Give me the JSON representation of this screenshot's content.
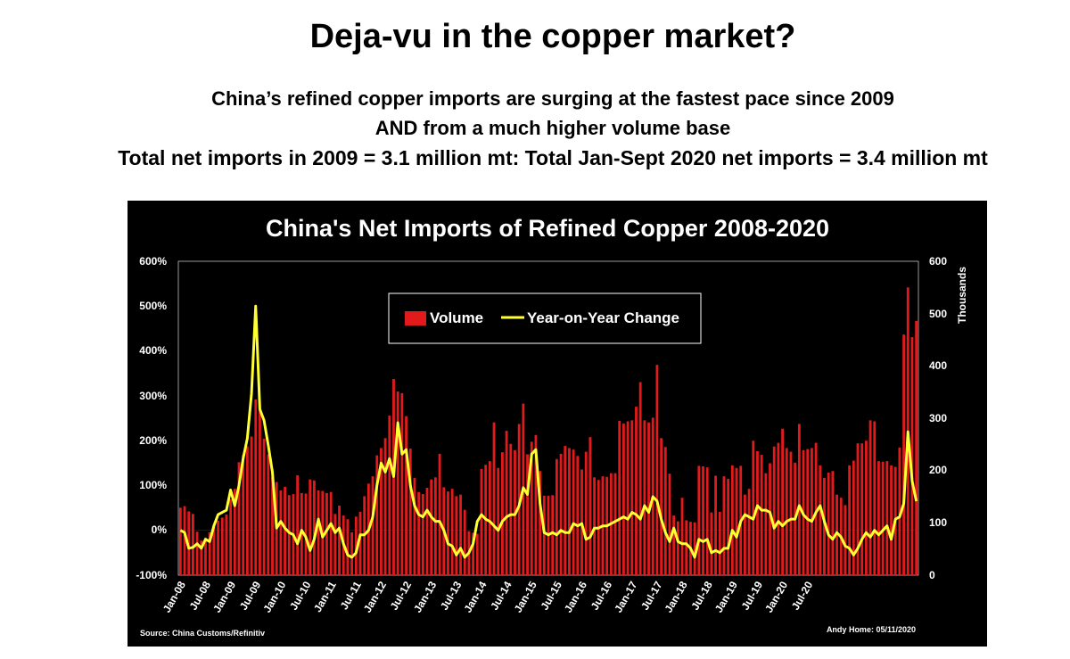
{
  "header": {
    "title": "Deja-vu in the copper market?",
    "subtitle_line1": "China’s refined copper imports are surging at the fastest pace since 2009",
    "subtitle_line2": "AND from a much higher volume base",
    "subtitle_line3": "Total net imports in 2009 = 3.1 million mt: Total Jan-Sept 2020 net imports = 3.4 million mt"
  },
  "chart_data": {
    "type": "bar",
    "title": "China's Net Imports of Refined Copper 2008-2020",
    "y_left_ticks": [
      "600%",
      "500%",
      "400%",
      "300%",
      "200%",
      "100%",
      "0%",
      "-100%"
    ],
    "y_right_ticks": [
      "600",
      "500",
      "400",
      "300",
      "200",
      "100",
      "0"
    ],
    "y_right_label": "Thousands",
    "ylim_left": [
      -100,
      600
    ],
    "ylim_right": [
      0,
      600
    ],
    "x_tick_labels": [
      "Jan-08",
      "Jul-08",
      "Jan-09",
      "Jul-09",
      "Jan-10",
      "Jul-10",
      "Jan-11",
      "Jul-11",
      "Jan-12",
      "Jul-12",
      "Jan-13",
      "Jul-13",
      "Jan-14",
      "Jul-14",
      "Jan-15",
      "Jul-15",
      "Jan-16",
      "Jul-16",
      "Jan-17",
      "Jul-17",
      "Jan-18",
      "Jul-18",
      "Jan-19",
      "Jul-19",
      "Jan-20",
      "Jul-20"
    ],
    "legend": {
      "position": "top-center",
      "volume_label": "Volume",
      "yoy_label": "Year-on-Year Change"
    },
    "series_colors": {
      "volume": "#e31a1c",
      "yoy": "#ffff33"
    },
    "source": "Source: China Customs/Refinitiv",
    "credit": "Andy Home: 05/11/2020",
    "volume": [
      129,
      132,
      122,
      117,
      83,
      66,
      72,
      82,
      93,
      104,
      110,
      116,
      145,
      165,
      216,
      230,
      246,
      265,
      336,
      316,
      261,
      231,
      187,
      178,
      162,
      169,
      153,
      155,
      191,
      157,
      156,
      183,
      181,
      162,
      161,
      157,
      159,
      117,
      133,
      114,
      107,
      82,
      112,
      121,
      151,
      175,
      189,
      229,
      243,
      262,
      305,
      375,
      351,
      348,
      304,
      242,
      186,
      159,
      155,
      167,
      183,
      187,
      232,
      168,
      160,
      165,
      151,
      154,
      125,
      84,
      81,
      79,
      203,
      211,
      218,
      292,
      205,
      235,
      276,
      251,
      239,
      289,
      328,
      231,
      255,
      268,
      199,
      152,
      152,
      153,
      222,
      232,
      247,
      243,
      240,
      228,
      202,
      236,
      264,
      187,
      182,
      189,
      188,
      195,
      195,
      295,
      290,
      294,
      296,
      322,
      369,
      296,
      292,
      301,
      402,
      262,
      245,
      194,
      114,
      103,
      148,
      105,
      102,
      101,
      209,
      208,
      206,
      120,
      190,
      121,
      189,
      184,
      210,
      205,
      209,
      154,
      165,
      257,
      237,
      230,
      195,
      214,
      246,
      253,
      280,
      243,
      236,
      215,
      289,
      239,
      241,
      243,
      253,
      210,
      186,
      196,
      199,
      154,
      148,
      134,
      210,
      219,
      252,
      252,
      257,
      296,
      294,
      218,
      217,
      218,
      210,
      207,
      244,
      460,
      550,
      455,
      486
    ],
    "yoy": [
      0,
      -5,
      -40,
      -38,
      -30,
      -40,
      -20,
      -25,
      10,
      35,
      40,
      45,
      90,
      55,
      100,
      160,
      205,
      305,
      500,
      270,
      245,
      190,
      130,
      5,
      20,
      5,
      -5,
      -10,
      -30,
      0,
      -15,
      -45,
      -20,
      25,
      -15,
      0,
      15,
      -5,
      5,
      -30,
      -55,
      -60,
      -50,
      -10,
      -10,
      0,
      30,
      100,
      150,
      130,
      160,
      120,
      240,
      170,
      180,
      100,
      55,
      35,
      30,
      45,
      30,
      20,
      20,
      0,
      -30,
      -35,
      -55,
      -40,
      -60,
      -50,
      -30,
      20,
      35,
      25,
      20,
      10,
      0,
      20,
      30,
      35,
      35,
      55,
      95,
      80,
      170,
      180,
      60,
      -5,
      -10,
      -5,
      -10,
      0,
      -5,
      -5,
      15,
      10,
      15,
      -20,
      -15,
      5,
      5,
      10,
      10,
      15,
      20,
      25,
      30,
      25,
      40,
      35,
      25,
      55,
      40,
      75,
      65,
      25,
      -5,
      -25,
      5,
      -25,
      -30,
      -30,
      -40,
      -60,
      -20,
      -25,
      -20,
      -50,
      -45,
      -50,
      -40,
      -40,
      0,
      -15,
      20,
      35,
      30,
      25,
      55,
      45,
      45,
      40,
      5,
      20,
      10,
      20,
      25,
      25,
      55,
      35,
      25,
      20,
      40,
      55,
      20,
      -10,
      -20,
      -5,
      -15,
      -35,
      -40,
      -55,
      -40,
      -20,
      -5,
      -15,
      0,
      -10,
      0,
      10,
      -20,
      25,
      30,
      60,
      220,
      110,
      65
    ]
  }
}
